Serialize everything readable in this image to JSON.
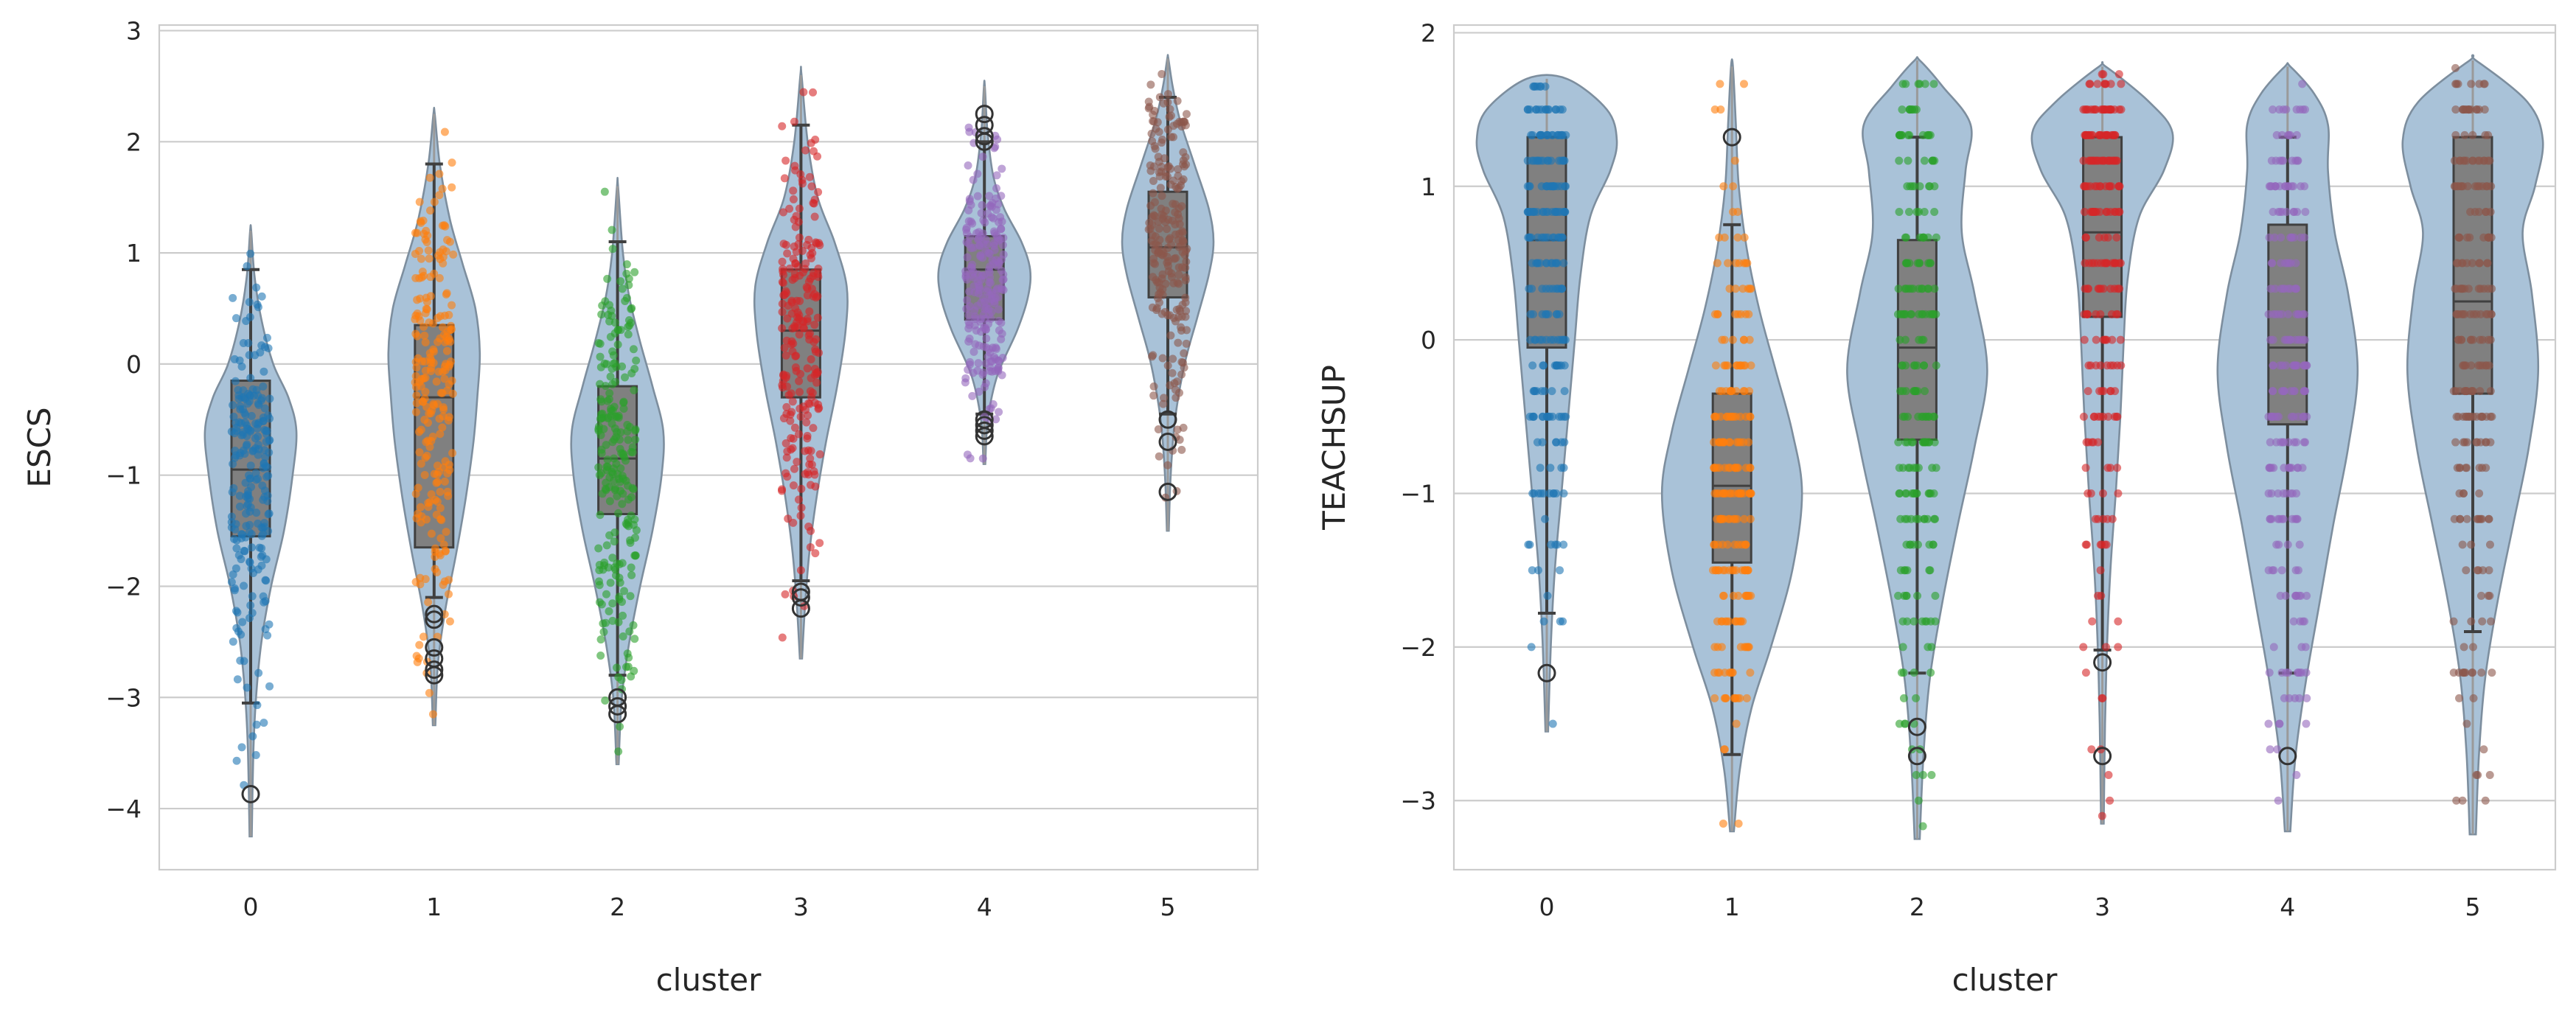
{
  "colors": {
    "violin_fill": "#a9c2d8",
    "box_fill": "#808080",
    "grid": "#cccccc",
    "clusters": [
      "#1f77b4",
      "#ff7f0e",
      "#2ca02c",
      "#d62728",
      "#9467bd",
      "#8c564b"
    ]
  },
  "chart_data": [
    {
      "type": "violin",
      "overlay": [
        "box",
        "strip"
      ],
      "xlabel": "cluster",
      "ylabel": "ESCS",
      "categories": [
        "0",
        "1",
        "2",
        "3",
        "4",
        "5"
      ],
      "y_ticks": [
        "−4",
        "−3",
        "−2",
        "−1",
        "0",
        "1",
        "2",
        "3"
      ],
      "y_tick_values": [
        -4,
        -3,
        -2,
        -1,
        0,
        1,
        2,
        3
      ],
      "ylim": [
        -4.55,
        3.05
      ],
      "grid": "horizontal",
      "groups": [
        {
          "cluster": "0",
          "q1": -1.55,
          "median": -0.95,
          "q3": -0.15,
          "whisker_low": -3.05,
          "whisker_high": 0.85,
          "min": -4.25,
          "max": 1.2,
          "outliers": [
            -3.87
          ],
          "density": [
            [
              -4.25,
              0.02
            ],
            [
              -3.5,
              0.05
            ],
            [
              -3.0,
              0.1
            ],
            [
              -2.5,
              0.2
            ],
            [
              -2.0,
              0.38
            ],
            [
              -1.5,
              0.62
            ],
            [
              -1.0,
              0.78
            ],
            [
              -0.6,
              0.85
            ],
            [
              -0.3,
              0.7
            ],
            [
              0.0,
              0.42
            ],
            [
              0.4,
              0.2
            ],
            [
              0.8,
              0.07
            ],
            [
              1.2,
              0.01
            ]
          ]
        },
        {
          "cluster": "1",
          "q1": -1.65,
          "median": -0.3,
          "q3": 0.35,
          "whisker_low": -2.1,
          "whisker_high": 1.8,
          "min": -3.25,
          "max": 2.25,
          "outliers": [
            -2.25,
            -2.3,
            -2.55,
            -2.65,
            -2.75,
            -2.8
          ],
          "density": [
            [
              -3.25,
              0.02
            ],
            [
              -2.7,
              0.06
            ],
            [
              -2.2,
              0.18
            ],
            [
              -1.7,
              0.35
            ],
            [
              -1.2,
              0.5
            ],
            [
              -0.7,
              0.62
            ],
            [
              -0.3,
              0.68
            ],
            [
              0.1,
              0.72
            ],
            [
              0.5,
              0.65
            ],
            [
              0.9,
              0.45
            ],
            [
              1.3,
              0.25
            ],
            [
              1.8,
              0.09
            ],
            [
              2.25,
              0.01
            ]
          ]
        },
        {
          "cluster": "2",
          "q1": -1.35,
          "median": -0.85,
          "q3": -0.2,
          "whisker_low": -2.8,
          "whisker_high": 1.1,
          "min": -3.6,
          "max": 1.6,
          "outliers": [
            -3.0,
            -3.08,
            -3.15
          ],
          "density": [
            [
              -3.6,
              0.02
            ],
            [
              -3.0,
              0.08
            ],
            [
              -2.5,
              0.22
            ],
            [
              -2.0,
              0.42
            ],
            [
              -1.5,
              0.65
            ],
            [
              -1.0,
              0.82
            ],
            [
              -0.6,
              0.85
            ],
            [
              -0.2,
              0.65
            ],
            [
              0.2,
              0.42
            ],
            [
              0.6,
              0.22
            ],
            [
              1.0,
              0.1
            ],
            [
              1.6,
              0.01
            ]
          ]
        },
        {
          "cluster": "3",
          "q1": -0.3,
          "median": 0.3,
          "q3": 0.85,
          "whisker_low": -1.95,
          "whisker_high": 2.15,
          "min": -2.65,
          "max": 2.6,
          "outliers": [
            -2.05,
            -2.1,
            -2.2
          ],
          "density": [
            [
              -2.65,
              0.02
            ],
            [
              -2.2,
              0.07
            ],
            [
              -1.7,
              0.15
            ],
            [
              -1.2,
              0.28
            ],
            [
              -0.7,
              0.45
            ],
            [
              -0.2,
              0.65
            ],
            [
              0.3,
              0.8
            ],
            [
              0.7,
              0.82
            ],
            [
              1.1,
              0.6
            ],
            [
              1.5,
              0.3
            ],
            [
              2.0,
              0.12
            ],
            [
              2.6,
              0.01
            ]
          ]
        },
        {
          "cluster": "4",
          "q1": 0.4,
          "median": 0.85,
          "q3": 1.15,
          "whisker_low": -0.45,
          "whisker_high": 2.0,
          "min": -0.9,
          "max": 2.5,
          "outliers": [
            -0.5,
            -0.55,
            -0.6,
            -0.65,
            2.0,
            2.05,
            2.15,
            2.25
          ],
          "density": [
            [
              -0.9,
              0.02
            ],
            [
              -0.5,
              0.08
            ],
            [
              -0.1,
              0.3
            ],
            [
              0.3,
              0.75
            ],
            [
              0.6,
              1.0
            ],
            [
              0.85,
              1.05
            ],
            [
              1.1,
              0.85
            ],
            [
              1.4,
              0.45
            ],
            [
              1.7,
              0.2
            ],
            [
              2.1,
              0.07
            ],
            [
              2.5,
              0.01
            ]
          ]
        },
        {
          "cluster": "5",
          "q1": 0.6,
          "median": 1.05,
          "q3": 1.55,
          "whisker_low": -0.45,
          "whisker_high": 2.4,
          "min": -1.5,
          "max": 2.75,
          "outliers": [
            -0.5,
            -0.7,
            -1.15
          ],
          "density": [
            [
              -1.5,
              0.02
            ],
            [
              -1.0,
              0.06
            ],
            [
              -0.5,
              0.15
            ],
            [
              0.0,
              0.35
            ],
            [
              0.4,
              0.6
            ],
            [
              0.8,
              0.85
            ],
            [
              1.1,
              0.95
            ],
            [
              1.4,
              0.85
            ],
            [
              1.8,
              0.55
            ],
            [
              2.2,
              0.25
            ],
            [
              2.5,
              0.1
            ],
            [
              2.75,
              0.01
            ]
          ]
        }
      ]
    },
    {
      "type": "violin",
      "overlay": [
        "box",
        "strip"
      ],
      "xlabel": "cluster",
      "ylabel": "TEACHSUP",
      "categories": [
        "0",
        "1",
        "2",
        "3",
        "4",
        "5"
      ],
      "y_ticks": [
        "−3",
        "−2",
        "−1",
        "0",
        "1",
        "2"
      ],
      "y_tick_values": [
        -3,
        -2,
        -1,
        0,
        1,
        2
      ],
      "ylim": [
        -3.45,
        2.05
      ],
      "grid": "horizontal",
      "groups": [
        {
          "cluster": "0",
          "q1": -0.05,
          "median": 0.65,
          "q3": 1.32,
          "whisker_low": -1.78,
          "whisker_high": 1.32,
          "min": -2.55,
          "max": 1.7,
          "outliers": [
            -2.17
          ],
          "density": [
            [
              -2.55,
              0.02
            ],
            [
              -2.0,
              0.06
            ],
            [
              -1.5,
              0.12
            ],
            [
              -1.0,
              0.22
            ],
            [
              -0.5,
              0.32
            ],
            [
              0.0,
              0.42
            ],
            [
              0.4,
              0.5
            ],
            [
              0.8,
              0.65
            ],
            [
              1.1,
              0.95
            ],
            [
              1.3,
              1.05
            ],
            [
              1.5,
              0.9
            ],
            [
              1.7,
              0.3
            ]
          ]
        },
        {
          "cluster": "1",
          "q1": -1.45,
          "median": -0.95,
          "q3": -0.35,
          "whisker_low": -2.7,
          "whisker_high": 0.75,
          "min": -3.2,
          "max": 1.78,
          "outliers": [
            1.32
          ],
          "density": [
            [
              -3.2,
              0.02
            ],
            [
              -2.8,
              0.08
            ],
            [
              -2.4,
              0.2
            ],
            [
              -2.0,
              0.4
            ],
            [
              -1.5,
              0.62
            ],
            [
              -1.0,
              0.72
            ],
            [
              -0.6,
              0.62
            ],
            [
              -0.2,
              0.45
            ],
            [
              0.2,
              0.28
            ],
            [
              0.6,
              0.15
            ],
            [
              1.0,
              0.07
            ],
            [
              1.4,
              0.04
            ],
            [
              1.78,
              0.01
            ]
          ]
        },
        {
          "cluster": "2",
          "q1": -0.65,
          "median": -0.05,
          "q3": 0.65,
          "whisker_low": -2.17,
          "whisker_high": 1.32,
          "min": -3.25,
          "max": 1.82,
          "outliers": [
            -2.52,
            -2.71
          ],
          "density": [
            [
              -3.25,
              0.02
            ],
            [
              -2.7,
              0.05
            ],
            [
              -2.2,
              0.1
            ],
            [
              -1.7,
              0.2
            ],
            [
              -1.2,
              0.32
            ],
            [
              -0.7,
              0.45
            ],
            [
              -0.2,
              0.55
            ],
            [
              0.3,
              0.45
            ],
            [
              0.7,
              0.35
            ],
            [
              1.1,
              0.38
            ],
            [
              1.4,
              0.42
            ],
            [
              1.65,
              0.2
            ],
            [
              1.82,
              0.02
            ]
          ]
        },
        {
          "cluster": "3",
          "q1": 0.15,
          "median": 0.7,
          "q3": 1.32,
          "whisker_low": -2.02,
          "whisker_high": 1.32,
          "min": -3.15,
          "max": 1.78,
          "outliers": [
            -2.1,
            -2.71
          ],
          "density": [
            [
              -3.15,
              0.02
            ],
            [
              -2.5,
              0.04
            ],
            [
              -2.0,
              0.07
            ],
            [
              -1.5,
              0.12
            ],
            [
              -1.0,
              0.2
            ],
            [
              -0.5,
              0.27
            ],
            [
              0.0,
              0.32
            ],
            [
              0.4,
              0.38
            ],
            [
              0.8,
              0.55
            ],
            [
              1.1,
              0.92
            ],
            [
              1.35,
              1.05
            ],
            [
              1.55,
              0.7
            ],
            [
              1.78,
              0.05
            ]
          ]
        },
        {
          "cluster": "4",
          "q1": -0.55,
          "median": -0.05,
          "q3": 0.75,
          "whisker_low": -2.17,
          "whisker_high": 1.32,
          "min": -3.2,
          "max": 1.78,
          "outliers": [
            -2.71
          ],
          "density": [
            [
              -3.2,
              0.02
            ],
            [
              -2.7,
              0.06
            ],
            [
              -2.2,
              0.14
            ],
            [
              -1.7,
              0.24
            ],
            [
              -1.2,
              0.34
            ],
            [
              -0.7,
              0.45
            ],
            [
              -0.2,
              0.52
            ],
            [
              0.3,
              0.45
            ],
            [
              0.7,
              0.35
            ],
            [
              1.1,
              0.3
            ],
            [
              1.4,
              0.3
            ],
            [
              1.6,
              0.2
            ],
            [
              1.78,
              0.02
            ]
          ]
        },
        {
          "cluster": "5",
          "q1": -0.35,
          "median": 0.25,
          "q3": 1.32,
          "whisker_low": -1.9,
          "whisker_high": 1.32,
          "min": -3.22,
          "max": 1.82,
          "outliers": [],
          "density": [
            [
              -3.22,
              0.02
            ],
            [
              -2.7,
              0.04
            ],
            [
              -2.2,
              0.08
            ],
            [
              -1.7,
              0.16
            ],
            [
              -1.2,
              0.26
            ],
            [
              -0.7,
              0.36
            ],
            [
              -0.2,
              0.42
            ],
            [
              0.3,
              0.38
            ],
            [
              0.7,
              0.32
            ],
            [
              1.0,
              0.4
            ],
            [
              1.3,
              0.45
            ],
            [
              1.55,
              0.35
            ],
            [
              1.82,
              0.02
            ]
          ]
        }
      ]
    }
  ]
}
